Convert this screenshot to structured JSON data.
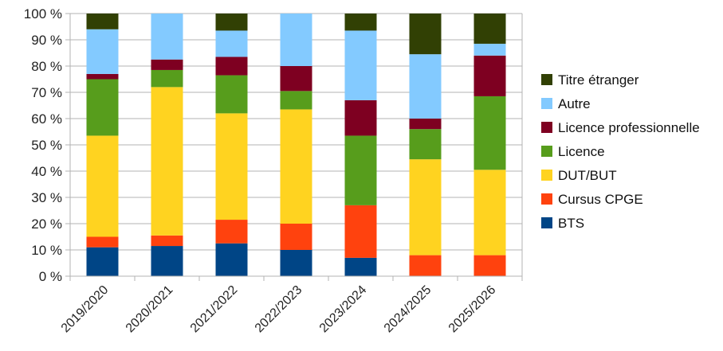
{
  "chart_data": {
    "type": "bar",
    "stacked": true,
    "percent": true,
    "title": "",
    "xlabel": "",
    "ylabel": "",
    "ylim": [
      0,
      100
    ],
    "yticks": [
      "0 %",
      "10 %",
      "20 %",
      "30 %",
      "40 %",
      "50 %",
      "60 %",
      "70 %",
      "80 %",
      "90 %",
      "100 %"
    ],
    "grid": true,
    "legend_position": "right",
    "categories": [
      "2019/2020",
      "2020/2021",
      "2021/2022",
      "2022/2023",
      "2023/2024",
      "2024/2025",
      "2025/2026"
    ],
    "series": [
      {
        "name": "BTS",
        "color": "#004586",
        "values": [
          11,
          11.5,
          12.5,
          10,
          7,
          0,
          0
        ]
      },
      {
        "name": "Cursus CPGE",
        "color": "#ff420e",
        "values": [
          4,
          4,
          9,
          10,
          20,
          8,
          8
        ]
      },
      {
        "name": "DUT/BUT",
        "color": "#ffd320",
        "values": [
          38.5,
          56.5,
          40.5,
          43.5,
          0,
          36.5,
          32.5
        ]
      },
      {
        "name": "Licence",
        "color": "#579d1c",
        "values": [
          21.5,
          6.5,
          14.5,
          7,
          26.5,
          11.5,
          28
        ]
      },
      {
        "name": "Licence professionnelle",
        "color": "#7e0021",
        "values": [
          2,
          4,
          7,
          9.5,
          13.5,
          4,
          15.5
        ]
      },
      {
        "name": "Autre",
        "color": "#83caff",
        "values": [
          17,
          17.5,
          10,
          20,
          26.5,
          24.5,
          4.5
        ]
      },
      {
        "name": "Titre étranger",
        "color": "#314004",
        "values": [
          6,
          0,
          6.5,
          0,
          6.5,
          15.5,
          11.5
        ]
      }
    ]
  }
}
